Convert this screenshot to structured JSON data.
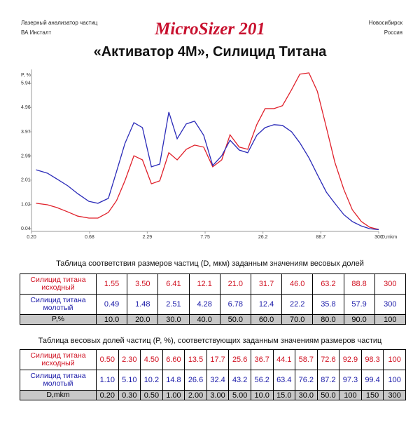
{
  "header": {
    "left": [
      "Лазерный анализатор частиц",
      "ВА Инсталт"
    ],
    "logo": "MicroSizer 201",
    "right": [
      "Новосибирск",
      "Россия"
    ]
  },
  "title": "«Активатор 4М», Силицид Титана",
  "chart_data": {
    "type": "line",
    "ylabel": "P, %",
    "xlabel": "D,mkm",
    "xscale": "log",
    "x": [
      0.22,
      0.28,
      0.34,
      0.43,
      0.53,
      0.67,
      0.81,
      1.01,
      1.2,
      1.43,
      1.73,
      2.07,
      2.5,
      2.98,
      3.61,
      4.3,
      5.21,
      6.21,
      7.52,
      9.1,
      11.0,
      13.1,
      15.9,
      19.0,
      23.0,
      27.4,
      33.1,
      39.5,
      47.9,
      57.0,
      69.0,
      82.4,
      99.7,
      119,
      144,
      172,
      208,
      248,
      300
    ],
    "series": [
      {
        "color": "#e0202a",
        "values": [
          1.07,
          1.01,
          0.9,
          0.72,
          0.55,
          0.47,
          0.47,
          0.7,
          1.18,
          1.98,
          3.0,
          2.83,
          1.86,
          1.98,
          3.12,
          2.83,
          3.26,
          3.43,
          3.35,
          2.55,
          2.83,
          3.85,
          3.35,
          3.26,
          4.26,
          4.91,
          4.91,
          5.03,
          5.68,
          6.31,
          6.36,
          5.61,
          4.14,
          2.74,
          1.63,
          0.81,
          0.33,
          0.1,
          0.01
        ]
      },
      {
        "color": "#2a2ab8",
        "values": [
          2.43,
          2.29,
          2.06,
          1.78,
          1.46,
          1.15,
          1.07,
          1.27,
          2.36,
          3.49,
          4.34,
          4.14,
          2.55,
          2.66,
          4.77,
          3.69,
          4.29,
          4.4,
          3.83,
          2.6,
          3.0,
          3.63,
          3.23,
          3.12,
          3.83,
          4.14,
          4.26,
          4.23,
          3.97,
          3.52,
          2.92,
          2.23,
          1.52,
          1.07,
          0.61,
          0.33,
          0.15,
          0.04,
          0
        ]
      }
    ],
    "xlim": [
      0.2,
      300
    ],
    "xticks": [
      {
        "value": 0.2,
        "label": "0.20"
      },
      0.68,
      2.29,
      7.75,
      26.2,
      88.7,
      300
    ],
    "ylim": [
      -0.07,
      6.5
    ],
    "yticks": [
      0.04,
      1.02,
      2.01,
      2.99,
      3.97,
      4.96,
      5.94
    ]
  },
  "tables": [
    {
      "title": "Таблица соответствия размеров частиц (D, мкм) заданным значениям весовых долей",
      "rows": [
        {
          "label": "Силицид титана исходный",
          "values": [
            "1.55",
            "3.50",
            "6.41",
            "12.1",
            "21.0",
            "31.7",
            "46.0",
            "63.2",
            "88.8",
            "300"
          ]
        },
        {
          "label": "Силицид титана молотый",
          "values": [
            "0.49",
            "1.48",
            "2.51",
            "4.28",
            "6.78",
            "12.4",
            "22.2",
            "35.8",
            "57.9",
            "300"
          ]
        },
        {
          "label": "P,%",
          "values": [
            "10.0",
            "20.0",
            "30.0",
            "40.0",
            "50.0",
            "60.0",
            "70.0",
            "80.0",
            "90.0",
            "100"
          ]
        }
      ]
    },
    {
      "title": "Таблица весовых долей частиц (P, %), соответствующих заданным значениям размеров частиц",
      "rows": [
        {
          "label": "Силицид титана исходный",
          "values": [
            "0.50",
            "2.30",
            "4.50",
            "6.60",
            "13.5",
            "17.7",
            "25.6",
            "36.7",
            "44.1",
            "58.7",
            "72.6",
            "92.9",
            "98.3",
            "100"
          ]
        },
        {
          "label": "Силицид титана молотый",
          "values": [
            "1.10",
            "5.10",
            "10.2",
            "14.8",
            "26.6",
            "32.4",
            "43.2",
            "56.2",
            "63.4",
            "76.2",
            "87.2",
            "97.3",
            "99.4",
            "100"
          ]
        },
        {
          "label": "D,mkm",
          "values": [
            "0.20",
            "0.30",
            "0.50",
            "1.00",
            "2.00",
            "3.00",
            "5.00",
            "10.0",
            "15.0",
            "30.0",
            "50.0",
            "100",
            "150",
            "300"
          ]
        }
      ]
    }
  ]
}
